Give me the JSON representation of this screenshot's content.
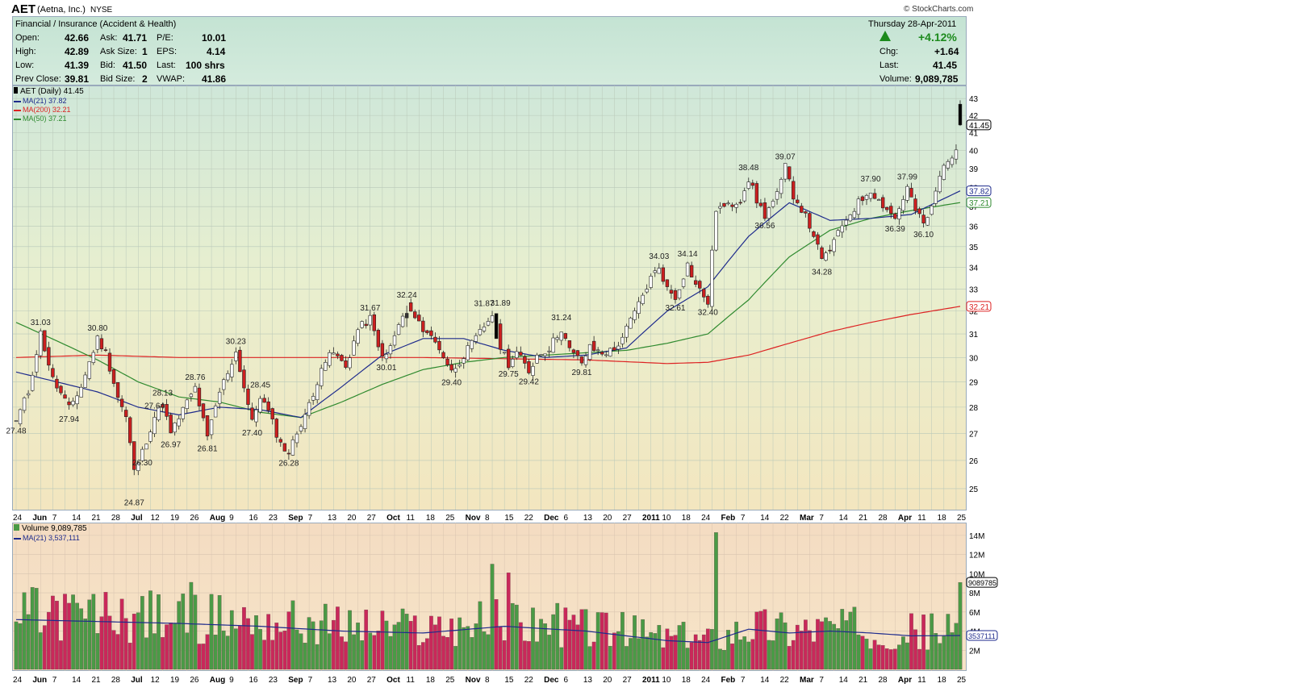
{
  "header": {
    "symbol": "AET",
    "company": "(Aetna, Inc.)",
    "exchange": "NYSE",
    "brand": "© StockCharts.com",
    "sector": "Financial / Insurance (Accident & Health)",
    "date": "Thursday  28-Apr-2011"
  },
  "quote": {
    "labels": {
      "open": "Open:",
      "high": "High:",
      "low": "Low:",
      "prev_close": "Prev Close:",
      "ask": "Ask:",
      "ask_size": "Ask Size:",
      "bid": "Bid:",
      "bid_size": "Bid Size:",
      "pe": "P/E:",
      "eps": "EPS:",
      "last": "Last:",
      "vwap": "VWAP:",
      "chg": "Chg:",
      "last2": "Last:",
      "volume": "Volume:"
    },
    "open": "42.66",
    "high": "42.89",
    "low": "41.39",
    "prev_close": "39.81",
    "ask": "41.71",
    "ask_size": "1",
    "bid": "41.50",
    "bid_size": "2",
    "pe": "10.01",
    "eps": "4.14",
    "last": "100 shrs",
    "vwap": "41.86",
    "pct_change": "+4.12%",
    "chg": "+1.64",
    "last_price": "41.45",
    "volume": "9,089,785"
  },
  "legend": {
    "price": "AET (Daily) 41.45",
    "ma21": "MA(21) 37.82",
    "ma200": "MA(200) 32.21",
    "ma50": "MA(50) 37.21",
    "volume": "Volume 9,089,785",
    "vol_ma": "MA(21) 3,537,111"
  },
  "colors": {
    "up": "#2e8b2e",
    "down": "#cc1f1f",
    "ma21": "#1d2a8c",
    "ma50": "#2f8a2f",
    "ma200": "#dd2222",
    "vol_up": "#4a9a46",
    "vol_down": "#c9285a",
    "grid": "#b9c8b9",
    "positive": "#1c8a1c"
  },
  "chart_data": [
    {
      "type": "candlestick",
      "title": "AET (Daily) 41.45",
      "ylim": [
        24.5,
        43.2
      ],
      "y_scale": "log",
      "y_ticks": [
        25,
        26,
        27,
        28,
        29,
        30,
        31,
        32,
        33,
        34,
        35,
        36,
        37,
        38,
        39,
        40,
        41,
        42,
        43
      ],
      "x_tick_labels": [
        "24",
        "Jun",
        "7",
        "14",
        "21",
        "28",
        "Jul",
        "12",
        "19",
        "26",
        "Aug",
        "9",
        "16",
        "23",
        "Sep",
        "7",
        "13",
        "20",
        "27",
        "Oct",
        "11",
        "18",
        "25",
        "Nov",
        "8",
        "15",
        "22",
        "Dec",
        "6",
        "13",
        "20",
        "27",
        "2011",
        "10",
        "18",
        "24",
        "Feb",
        "7",
        "14",
        "22",
        "Mar",
        "7",
        "14",
        "21",
        "28",
        "Apr",
        "11",
        "18",
        "25"
      ],
      "price_anchors": [
        [
          0,
          27.48
        ],
        [
          3,
          28.6
        ],
        [
          6,
          31.03
        ],
        [
          9,
          29.1
        ],
        [
          13,
          27.94
        ],
        [
          16,
          28.8
        ],
        [
          20,
          30.8
        ],
        [
          22,
          30.2
        ],
        [
          25,
          28.4
        ],
        [
          27,
          27.6
        ],
        [
          29,
          25.6
        ],
        [
          31,
          26.3
        ],
        [
          34,
          27.64
        ],
        [
          36,
          28.13
        ],
        [
          38,
          26.97
        ],
        [
          41,
          27.9
        ],
        [
          44,
          28.76
        ],
        [
          47,
          26.81
        ],
        [
          50,
          28.6
        ],
        [
          54,
          30.23
        ],
        [
          56,
          28.8
        ],
        [
          58,
          27.4
        ],
        [
          60,
          28.45
        ],
        [
          62,
          27.8
        ],
        [
          65,
          26.6
        ],
        [
          67,
          26.28
        ],
        [
          70,
          27.4
        ],
        [
          73,
          28.4
        ],
        [
          75,
          29.7
        ],
        [
          78,
          30.2
        ],
        [
          81,
          29.6
        ],
        [
          84,
          31.2
        ],
        [
          87,
          31.67
        ],
        [
          89,
          30.4
        ],
        [
          91,
          30.01
        ],
        [
          93,
          30.9
        ],
        [
          96,
          32.24
        ],
        [
          99,
          31.4
        ],
        [
          101,
          31.1
        ],
        [
          104,
          30.4
        ],
        [
          107,
          29.4
        ],
        [
          110,
          30.1
        ],
        [
          113,
          30.8
        ],
        [
          117,
          31.87
        ],
        [
          119,
          30.5
        ],
        [
          121,
          29.75
        ],
        [
          123,
          30.2
        ],
        [
          126,
          29.42
        ],
        [
          128,
          30.1
        ],
        [
          131,
          30.4
        ],
        [
          134,
          31.24
        ],
        [
          136,
          30.3
        ],
        [
          139,
          29.81
        ],
        [
          141,
          30.4
        ],
        [
          144,
          30.2
        ],
        [
          147,
          30.3
        ],
        [
          150,
          31.2
        ],
        [
          153,
          32.3
        ],
        [
          156,
          33.5
        ],
        [
          158,
          34.03
        ],
        [
          160,
          33.0
        ],
        [
          162,
          32.61
        ],
        [
          165,
          34.14
        ],
        [
          167,
          33.2
        ],
        [
          170,
          32.4
        ],
        [
          172,
          36.9
        ],
        [
          175,
          37.0
        ],
        [
          178,
          37.4
        ],
        [
          180,
          38.48
        ],
        [
          182,
          37.3
        ],
        [
          184,
          36.56
        ],
        [
          187,
          37.6
        ],
        [
          189,
          39.07
        ],
        [
          191,
          37.6
        ],
        [
          193,
          36.9
        ],
        [
          196,
          35.6
        ],
        [
          198,
          34.28
        ],
        [
          200,
          34.9
        ],
        [
          202,
          35.6
        ],
        [
          204,
          36.4
        ],
        [
          207,
          37.2
        ],
        [
          210,
          37.9
        ],
        [
          212,
          37.3
        ],
        [
          214,
          36.9
        ],
        [
          216,
          36.39
        ],
        [
          219,
          37.99
        ],
        [
          221,
          36.8
        ],
        [
          223,
          36.1
        ],
        [
          225,
          36.9
        ],
        [
          227,
          38.6
        ],
        [
          229,
          39.6
        ],
        [
          231,
          39.81
        ],
        [
          232,
          41.45
        ]
      ],
      "selected_bars": {
        "index": [
          96,
          118,
          232
        ],
        "open": [
          31.7,
          31.89,
          42.66
        ],
        "high": [
          32.24,
          31.89,
          42.89
        ],
        "low": [
          31.3,
          30.8,
          41.39
        ],
        "close": [
          31.9,
          30.8,
          41.45
        ]
      },
      "annotations": [
        {
          "x": 0,
          "y": 27.48,
          "label": "27.48",
          "pos": "below"
        },
        {
          "x": 6,
          "y": 31.03,
          "label": "31.03",
          "pos": "above"
        },
        {
          "x": 13,
          "y": 27.94,
          "label": "27.94",
          "pos": "below"
        },
        {
          "x": 20,
          "y": 30.8,
          "label": "30.80",
          "pos": "above"
        },
        {
          "x": 29,
          "y": 24.87,
          "label": "24.87",
          "pos": "below"
        },
        {
          "x": 31,
          "y": 26.3,
          "label": "26.30",
          "pos": "below"
        },
        {
          "x": 34,
          "y": 27.64,
          "label": "27.64",
          "pos": "above"
        },
        {
          "x": 36,
          "y": 28.13,
          "label": "28.13",
          "pos": "above"
        },
        {
          "x": 38,
          "y": 26.97,
          "label": "26.97",
          "pos": "below"
        },
        {
          "x": 44,
          "y": 28.76,
          "label": "28.76",
          "pos": "above"
        },
        {
          "x": 47,
          "y": 26.81,
          "label": "26.81",
          "pos": "below"
        },
        {
          "x": 54,
          "y": 30.23,
          "label": "30.23",
          "pos": "above"
        },
        {
          "x": 58,
          "y": 27.4,
          "label": "27.40",
          "pos": "below"
        },
        {
          "x": 60,
          "y": 28.45,
          "label": "28.45",
          "pos": "above"
        },
        {
          "x": 67,
          "y": 26.28,
          "label": "26.28",
          "pos": "below"
        },
        {
          "x": 87,
          "y": 31.67,
          "label": "31.67",
          "pos": "above"
        },
        {
          "x": 91,
          "y": 30.01,
          "label": "30.01",
          "pos": "below"
        },
        {
          "x": 96,
          "y": 32.24,
          "label": "32.24",
          "pos": "above"
        },
        {
          "x": 107,
          "y": 29.4,
          "label": "29.40",
          "pos": "below"
        },
        {
          "x": 115,
          "y": 31.87,
          "label": "31.87",
          "pos": "above"
        },
        {
          "x": 119,
          "y": 31.89,
          "label": "31.89",
          "pos": "above"
        },
        {
          "x": 121,
          "y": 29.75,
          "label": "29.75",
          "pos": "below"
        },
        {
          "x": 126,
          "y": 29.42,
          "label": "29.42",
          "pos": "below"
        },
        {
          "x": 134,
          "y": 31.24,
          "label": "31.24",
          "pos": "above"
        },
        {
          "x": 139,
          "y": 29.81,
          "label": "29.81",
          "pos": "below"
        },
        {
          "x": 158,
          "y": 34.03,
          "label": "34.03",
          "pos": "above"
        },
        {
          "x": 162,
          "y": 32.61,
          "label": "32.61",
          "pos": "below"
        },
        {
          "x": 165,
          "y": 34.14,
          "label": "34.14",
          "pos": "above"
        },
        {
          "x": 170,
          "y": 32.4,
          "label": "32.40",
          "pos": "below"
        },
        {
          "x": 180,
          "y": 38.48,
          "label": "38.48",
          "pos": "above"
        },
        {
          "x": 184,
          "y": 36.56,
          "label": "36.56",
          "pos": "below"
        },
        {
          "x": 189,
          "y": 39.07,
          "label": "39.07",
          "pos": "above"
        },
        {
          "x": 198,
          "y": 34.28,
          "label": "34.28",
          "pos": "below"
        },
        {
          "x": 210,
          "y": 37.9,
          "label": "37.90",
          "pos": "above"
        },
        {
          "x": 216,
          "y": 36.39,
          "label": "36.39",
          "pos": "below"
        },
        {
          "x": 219,
          "y": 37.99,
          "label": "37.99",
          "pos": "above"
        },
        {
          "x": 223,
          "y": 36.1,
          "label": "36.10",
          "pos": "below"
        }
      ],
      "ma21_anchors": [
        [
          0,
          29.4
        ],
        [
          10,
          29.0
        ],
        [
          20,
          28.6
        ],
        [
          30,
          28.0
        ],
        [
          40,
          27.7
        ],
        [
          50,
          28.0
        ],
        [
          60,
          27.9
        ],
        [
          70,
          27.6
        ],
        [
          80,
          28.8
        ],
        [
          90,
          30.1
        ],
        [
          100,
          30.8
        ],
        [
          110,
          30.8
        ],
        [
          120,
          30.3
        ],
        [
          130,
          30.0
        ],
        [
          140,
          30.1
        ],
        [
          150,
          30.4
        ],
        [
          160,
          32.0
        ],
        [
          170,
          33.1
        ],
        [
          180,
          35.5
        ],
        [
          190,
          37.2
        ],
        [
          200,
          36.3
        ],
        [
          210,
          36.4
        ],
        [
          220,
          36.6
        ],
        [
          232,
          37.82
        ]
      ],
      "ma50_anchors": [
        [
          0,
          31.5
        ],
        [
          10,
          30.7
        ],
        [
          20,
          29.9
        ],
        [
          30,
          29.0
        ],
        [
          40,
          28.4
        ],
        [
          50,
          28.2
        ],
        [
          60,
          27.8
        ],
        [
          70,
          27.6
        ],
        [
          80,
          28.2
        ],
        [
          90,
          28.9
        ],
        [
          100,
          29.5
        ],
        [
          110,
          29.8
        ],
        [
          120,
          30.0
        ],
        [
          130,
          30.1
        ],
        [
          140,
          30.2
        ],
        [
          150,
          30.3
        ],
        [
          160,
          30.6
        ],
        [
          170,
          31.0
        ],
        [
          180,
          32.5
        ],
        [
          190,
          34.5
        ],
        [
          200,
          35.8
        ],
        [
          210,
          36.4
        ],
        [
          220,
          36.8
        ],
        [
          232,
          37.21
        ]
      ],
      "ma200_anchors": [
        [
          0,
          30.0
        ],
        [
          20,
          30.1
        ],
        [
          40,
          30.0
        ],
        [
          60,
          30.0
        ],
        [
          80,
          30.0
        ],
        [
          100,
          30.0
        ],
        [
          120,
          29.95
        ],
        [
          140,
          29.9
        ],
        [
          160,
          29.75
        ],
        [
          170,
          29.8
        ],
        [
          180,
          30.1
        ],
        [
          190,
          30.6
        ],
        [
          200,
          31.1
        ],
        [
          210,
          31.5
        ],
        [
          220,
          31.85
        ],
        [
          232,
          32.21
        ]
      ],
      "markers": [
        {
          "label": "43",
          "value": 43
        },
        {
          "label": "42",
          "value": 42
        },
        {
          "label": "41",
          "value": 41
        },
        {
          "label": "41.45",
          "value": 41.45,
          "boxed": true,
          "color": "#000000"
        },
        {
          "label": "37.82",
          "value": 37.82,
          "boxed": true,
          "color": "#1d2a8c"
        },
        {
          "label": "37.21",
          "value": 37.21,
          "boxed": true,
          "color": "#2f8a2f"
        },
        {
          "label": "32.21",
          "value": 32.21,
          "boxed": true,
          "color": "#dd2222"
        }
      ]
    },
    {
      "type": "bar",
      "title": "Volume 9,089,785",
      "ylim": [
        0,
        15000000
      ],
      "y_ticks": [
        2000000,
        4000000,
        6000000,
        8000000,
        10000000,
        12000000,
        14000000
      ],
      "y_tick_labels": [
        "2M",
        "4M",
        "6M",
        "8M",
        "10M",
        "12M",
        "14M"
      ],
      "x_tick_labels": [
        "24",
        "Jun",
        "7",
        "14",
        "21",
        "28",
        "Jul",
        "12",
        "19",
        "26",
        "Aug",
        "9",
        "16",
        "23",
        "Sep",
        "7",
        "13",
        "20",
        "27",
        "Oct",
        "11",
        "18",
        "25",
        "Nov",
        "8",
        "15",
        "22",
        "Dec",
        "6",
        "13",
        "20",
        "27",
        "2011",
        "10",
        "18",
        "24",
        "Feb",
        "7",
        "14",
        "22",
        "Mar",
        "7",
        "14",
        "21",
        "28",
        "Apr",
        "11",
        "18",
        "25"
      ],
      "volume_selected": {
        "index": [
          43,
          117,
          121,
          172,
          232
        ],
        "values": [
          9100000,
          11000000,
          10100000,
          14300000,
          9089785
        ]
      },
      "ma_anchors": [
        [
          0,
          5200000
        ],
        [
          20,
          5000000
        ],
        [
          40,
          4800000
        ],
        [
          60,
          4500000
        ],
        [
          80,
          4000000
        ],
        [
          100,
          3800000
        ],
        [
          120,
          4500000
        ],
        [
          140,
          4000000
        ],
        [
          160,
          3000000
        ],
        [
          170,
          2800000
        ],
        [
          180,
          4200000
        ],
        [
          190,
          3800000
        ],
        [
          200,
          4000000
        ],
        [
          210,
          3800000
        ],
        [
          220,
          3500000
        ],
        [
          232,
          3537111
        ]
      ],
      "markers": [
        {
          "label": "9089785",
          "value": 9089785,
          "boxed": true,
          "color": "#000000"
        },
        {
          "label": "3537111",
          "value": 3537111,
          "boxed": true,
          "color": "#1d2a8c"
        }
      ]
    }
  ]
}
